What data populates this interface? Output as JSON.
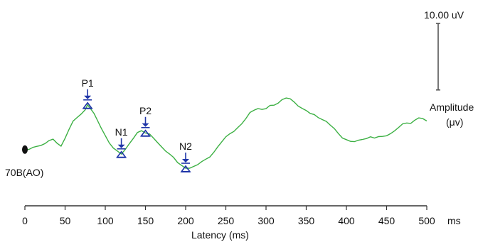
{
  "chart_data": {
    "type": "line",
    "xlabel": "Latency (ms)",
    "x_unit_label": "ms",
    "xlim": [
      0,
      500
    ],
    "xticks": [
      0,
      50,
      100,
      150,
      200,
      250,
      300,
      350,
      400,
      450,
      500
    ],
    "ylim": [
      -10,
      20
    ],
    "grid": false,
    "trace_label": "70B(AO)",
    "scale_bar": {
      "label": "10.00 uV",
      "value": 10
    },
    "amplitude_label": [
      "Amplitude",
      "(μv)"
    ],
    "colors": {
      "trace": "#3cb043",
      "marker": "#1f35a8",
      "axis": "#333333",
      "scalebar": "#555555"
    },
    "series": [
      {
        "x": [
          0,
          5,
          10,
          15,
          20,
          25,
          30,
          35,
          40,
          45,
          50,
          55,
          60,
          65,
          70,
          75,
          78,
          82,
          86,
          90,
          95,
          100,
          105,
          110,
          115,
          120,
          125,
          130,
          135,
          140,
          145,
          150,
          155,
          160,
          165,
          170,
          175,
          180,
          185,
          190,
          195,
          200,
          205,
          210,
          215,
          220,
          225,
          230,
          235,
          240,
          245,
          250,
          255,
          260,
          265,
          270,
          275,
          280,
          285,
          290,
          295,
          300,
          305,
          310,
          315,
          320,
          325,
          330,
          335,
          340,
          345,
          350,
          355,
          360,
          365,
          370,
          375,
          380,
          385,
          390,
          395,
          400,
          405,
          410,
          415,
          420,
          425,
          430,
          435,
          440,
          445,
          450,
          455,
          460,
          465,
          470,
          475,
          480,
          485,
          490,
          495,
          500
        ],
        "y": [
          0.1,
          0.2,
          0.4,
          0.7,
          0.9,
          1.2,
          1.9,
          2.0,
          1.2,
          0.8,
          2.2,
          4.0,
          5.5,
          6.0,
          6.8,
          7.6,
          8.5,
          7.8,
          6.8,
          5.6,
          4.2,
          2.7,
          1.4,
          0.4,
          -0.3,
          -0.7,
          0.2,
          1.2,
          2.3,
          3.2,
          3.6,
          3.3,
          3.0,
          2.3,
          1.4,
          0.5,
          -0.1,
          -0.7,
          -1.4,
          -2.3,
          -3.0,
          -3.4,
          -3.3,
          -3.1,
          -2.7,
          -2.2,
          -1.8,
          -1.2,
          -0.4,
          0.6,
          1.6,
          2.4,
          3.1,
          3.6,
          4.2,
          5.0,
          5.9,
          7.0,
          7.6,
          7.8,
          7.6,
          7.8,
          8.3,
          8.5,
          8.9,
          9.4,
          9.8,
          9.6,
          9.0,
          8.4,
          7.8,
          7.4,
          6.9,
          6.6,
          6.2,
          5.8,
          5.3,
          4.7,
          4.0,
          3.1,
          2.4,
          1.9,
          1.6,
          1.6,
          1.8,
          2.1,
          2.2,
          2.4,
          2.3,
          2.5,
          2.6,
          2.8,
          3.0,
          3.6,
          4.3,
          4.9,
          5.2,
          5.0,
          5.5,
          6.1,
          5.9,
          5.5
        ]
      }
    ],
    "peaks": [
      {
        "label": "P1",
        "x": 78,
        "y": 8.5
      },
      {
        "label": "N1",
        "x": 120,
        "y": -0.7
      },
      {
        "label": "P2",
        "x": 150,
        "y": 3.3
      },
      {
        "label": "N2",
        "x": 200,
        "y": -3.4
      }
    ]
  }
}
